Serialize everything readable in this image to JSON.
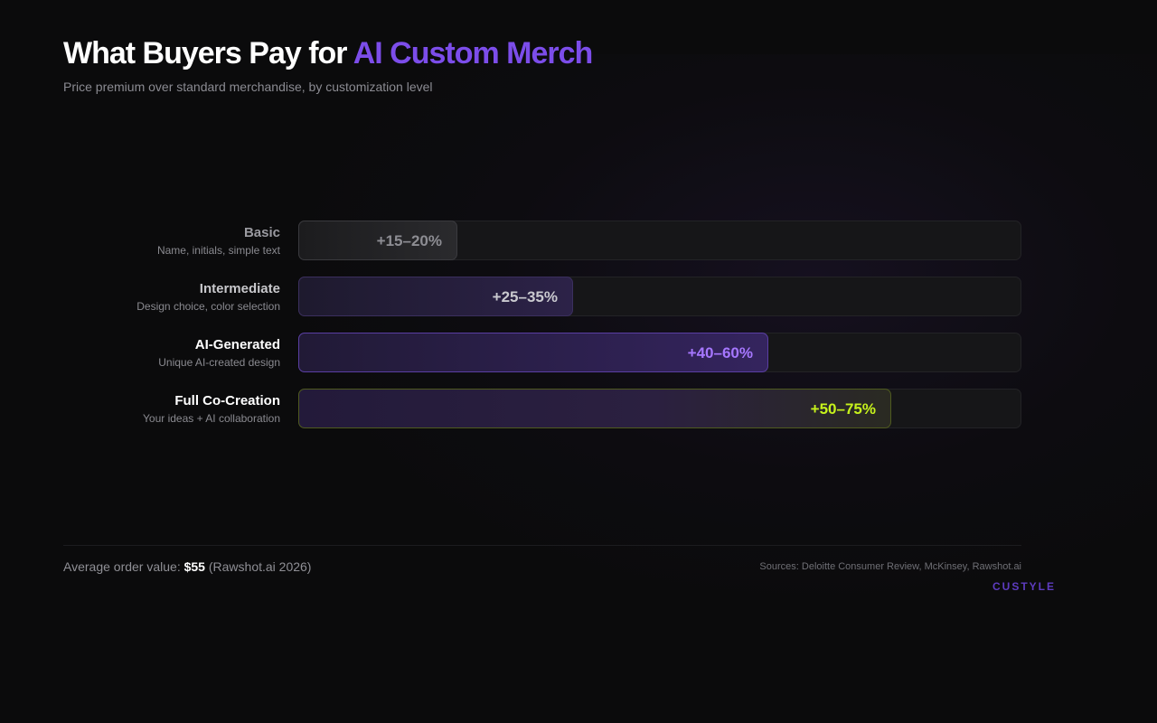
{
  "header": {
    "title_main": "What Buyers Pay for ",
    "title_accent": "AI Custom Merch",
    "subtitle": "Price premium over standard merchandise, by customization level"
  },
  "colors": {
    "background": "#0b0b0c",
    "accent_purple": "#7c4dea",
    "label_purple": "#a677ff",
    "highlight_lime": "#c6f21c",
    "muted_grey": "#8a8a90"
  },
  "chart_data": {
    "type": "bar",
    "orientation": "horizontal",
    "title": "What Buyers Pay for AI Custom Merch",
    "subtitle": "Price premium over standard merchandise, by customization level",
    "xlim": [
      0,
      100
    ],
    "categories": [
      "Basic",
      "Intermediate",
      "AI-Generated",
      "Full Co-Creation"
    ],
    "descriptions": [
      "Name, initials, simple text",
      "Design choice, color selection",
      "Unique AI-created design",
      "Your ideas + AI collaboration"
    ],
    "ranges": [
      [
        15,
        20
      ],
      [
        25,
        35
      ],
      [
        40,
        60
      ],
      [
        50,
        75
      ]
    ],
    "value_labels": [
      "+15–20%",
      "+25–35%",
      "+40–60%",
      "+50–75%"
    ],
    "values": [
      22,
      38,
      65,
      82
    ]
  },
  "footer": {
    "avg_prefix": "Average order value: ",
    "avg_value": "$55",
    "avg_suffix": " (Rawshot.ai 2026)",
    "sources": "Sources: Deloitte Consumer Review, McKinsey, Rawshot.ai",
    "brand": "CUSTYLE"
  }
}
